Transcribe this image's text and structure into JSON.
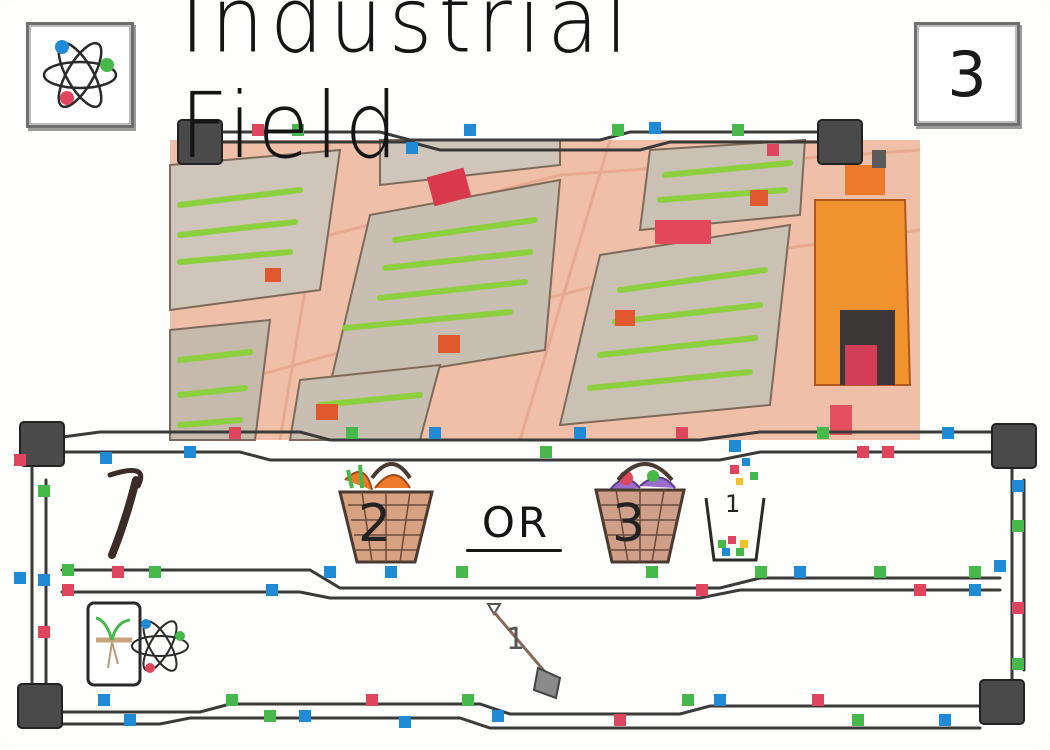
{
  "card": {
    "title": "Industrial Field",
    "number": "3",
    "type_icon": "atom-icon"
  },
  "reward": {
    "tool_icon": "scythe-icon",
    "option_a": {
      "icon": "basket-small-icon",
      "count": "2"
    },
    "separator": "OR",
    "option_b": {
      "icon": "basket-large-icon",
      "count": "3"
    },
    "bonus": {
      "icon": "compost-bin-icon",
      "count": "1"
    }
  },
  "cost": {
    "icon": "shovel-icon",
    "count": "1"
  },
  "tags": {
    "icon": "sprout-atom-icon"
  },
  "colors": {
    "track": "#3a3a3a",
    "connector_red": "#e0455e",
    "connector_blue": "#1f8ad6",
    "connector_green": "#47b84a",
    "soil": "#e9b49c",
    "crop": "#8ccf3f",
    "barn": "#f0922d"
  }
}
